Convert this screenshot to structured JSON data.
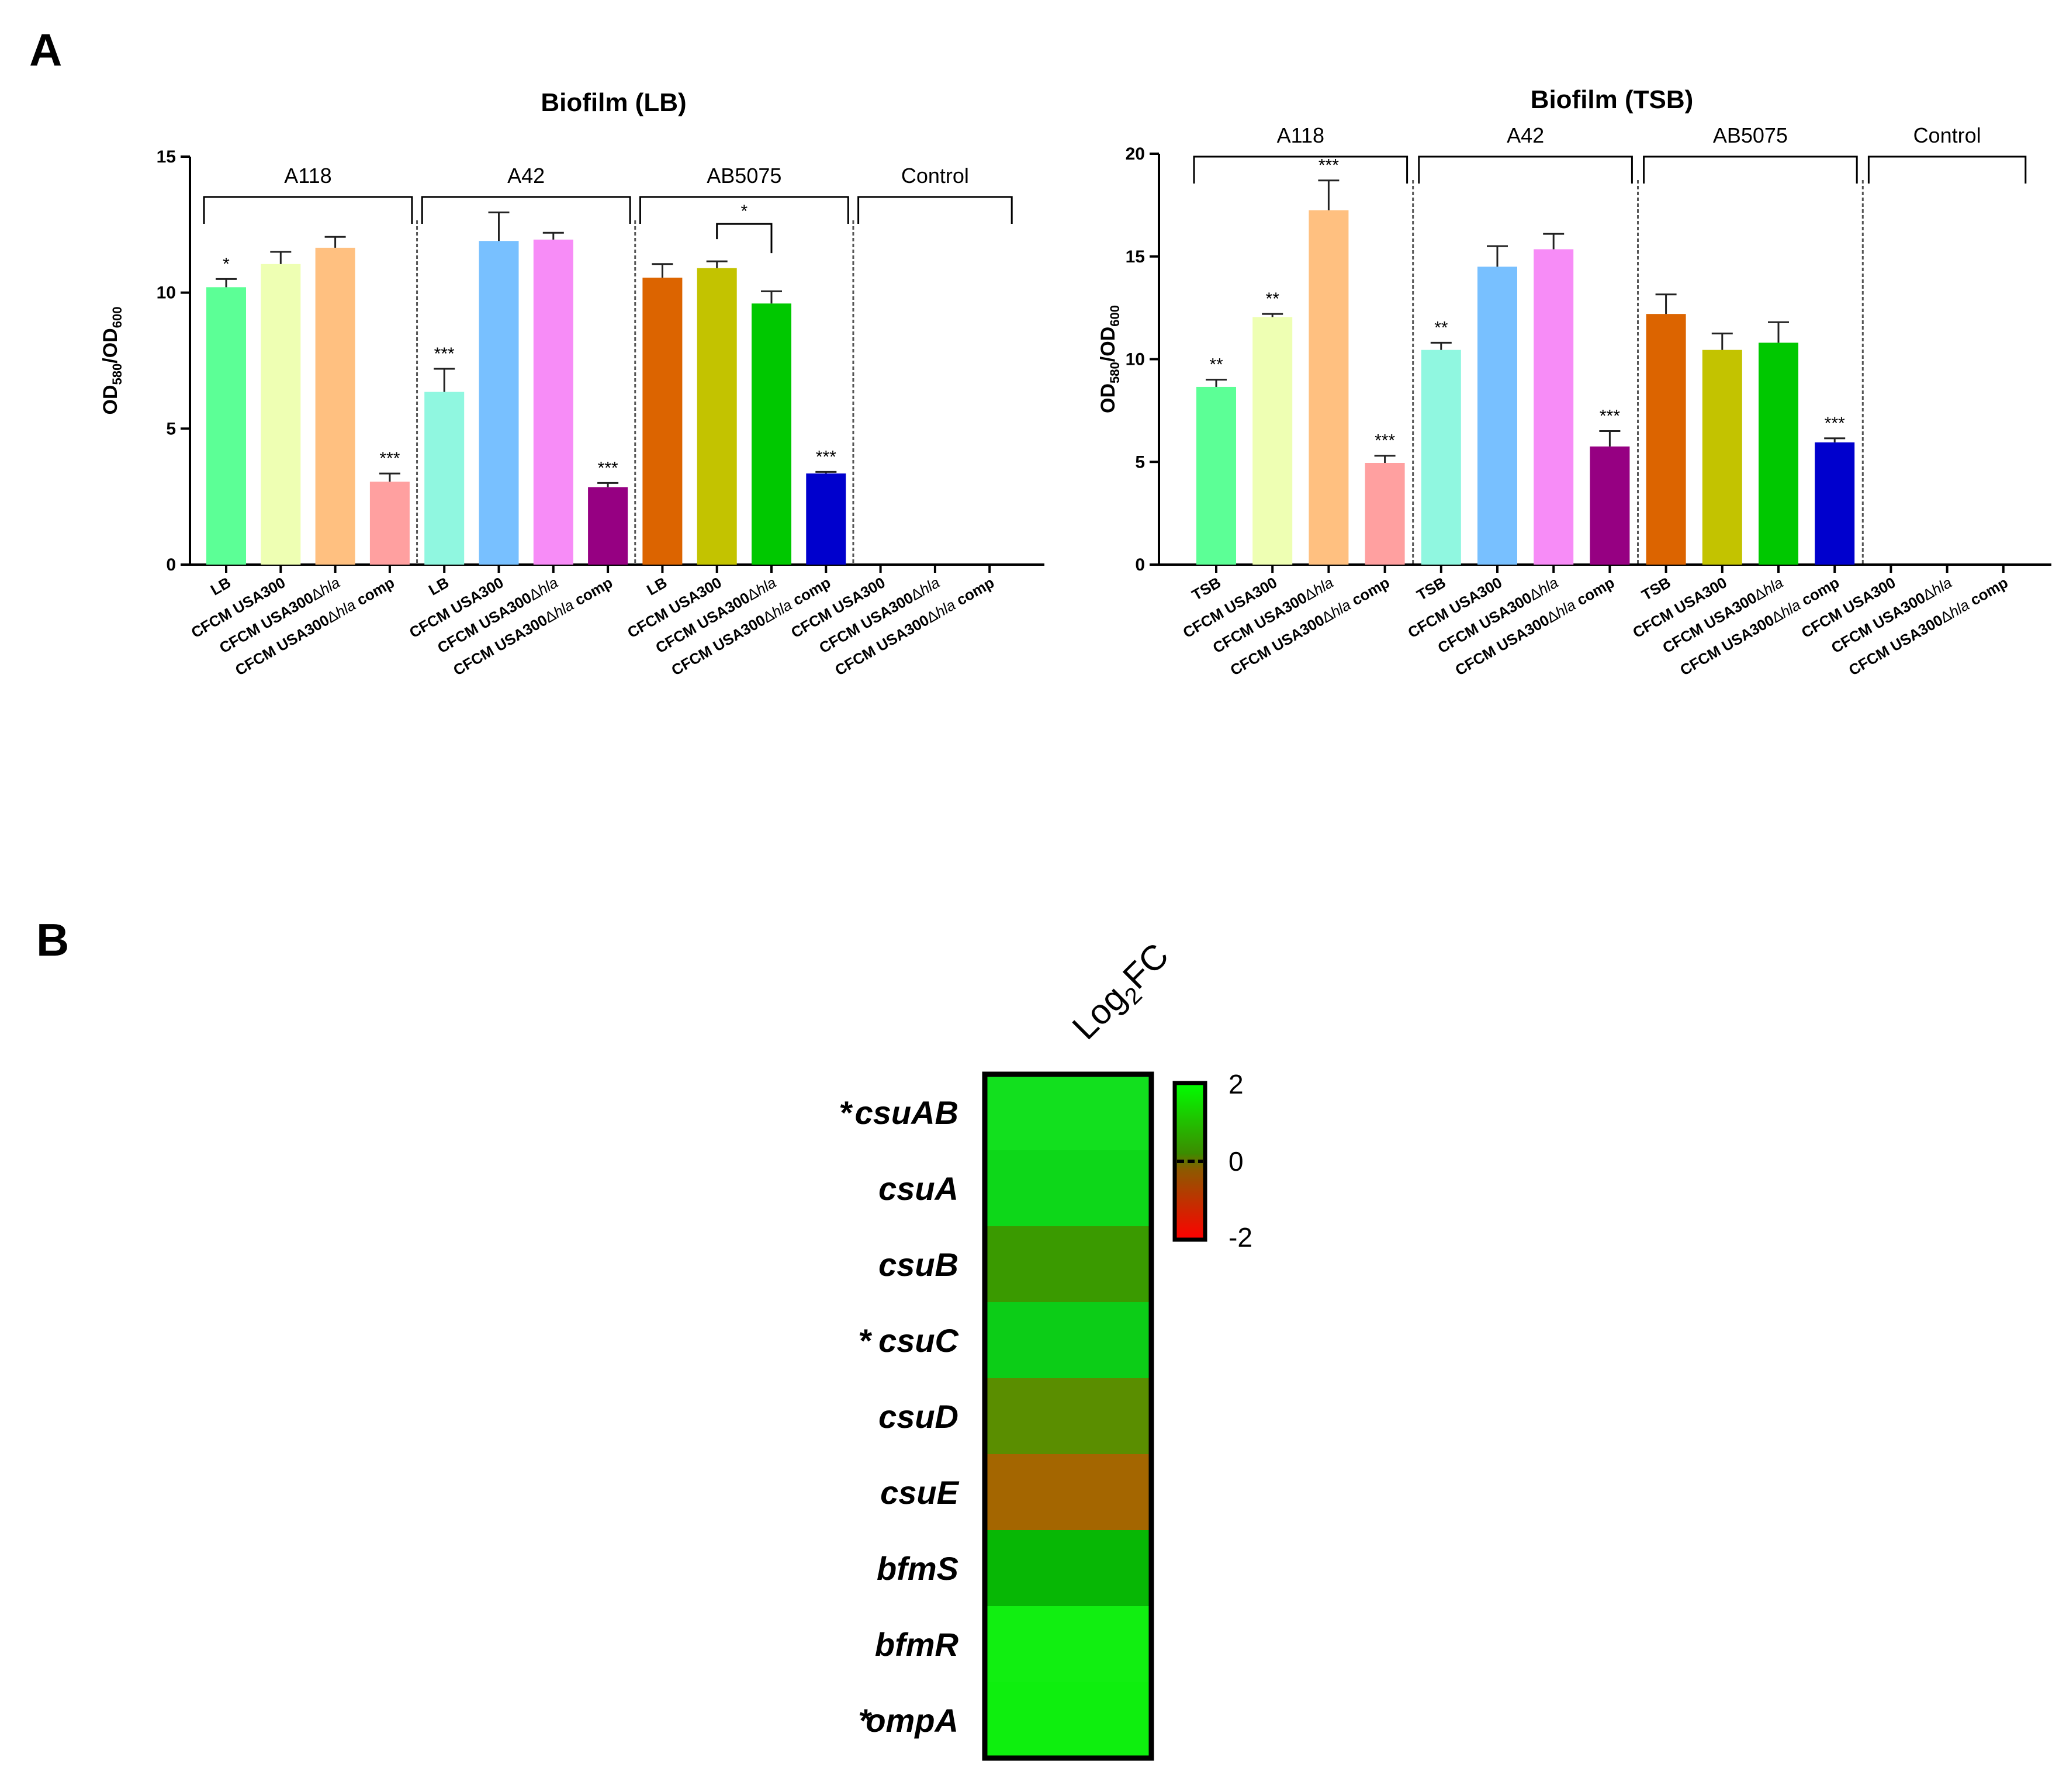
{
  "panel_labels": {
    "a": "A",
    "b": "B"
  },
  "chart_data": [
    {
      "type": "bar",
      "title": "Biofilm (LB)",
      "ylabel": "OD580/OD600",
      "ylabel_parts": {
        "main1": "OD",
        "sub1": "580",
        "slash": "/OD",
        "sub2": "600"
      },
      "ylim": [
        0,
        15
      ],
      "yticks": [
        0,
        5,
        10,
        15
      ],
      "groups": [
        {
          "label": "A118",
          "bars": [
            {
              "label": "LB",
              "value": 10.2,
              "err": 0.3,
              "color": "#5cff96",
              "sig": "*"
            },
            {
              "label": "CFCM USA300",
              "value": 11.05,
              "err": 0.45,
              "color": "#eeffb3",
              "sig": ""
            },
            {
              "label": "CFCM USA300Δhla",
              "value": 11.65,
              "err": 0.4,
              "color": "#ffc080",
              "sig": ""
            },
            {
              "label": "CFCM USA300Δhla comp",
              "value": 3.05,
              "err": 0.3,
              "color": "#ffa0a0",
              "sig": "***"
            }
          ]
        },
        {
          "label": "A42",
          "bars": [
            {
              "label": "LB",
              "value": 6.35,
              "err": 0.85,
              "color": "#90f7e0",
              "sig": "***"
            },
            {
              "label": "CFCM USA300",
              "value": 11.9,
              "err": 1.05,
              "color": "#78c0ff",
              "sig": ""
            },
            {
              "label": "CFCM USA300Δhla",
              "value": 11.95,
              "err": 0.25,
              "color": "#f78cf7",
              "sig": ""
            },
            {
              "label": "CFCM USA300Δhla comp",
              "value": 2.85,
              "err": 0.15,
              "color": "#960082",
              "sig": "***"
            }
          ]
        },
        {
          "label": "AB5075",
          "bars": [
            {
              "label": "LB",
              "value": 10.55,
              "err": 0.5,
              "color": "#dc6400",
              "sig": ""
            },
            {
              "label": "CFCM USA300",
              "value": 10.9,
              "err": 0.25,
              "color": "#c3c300",
              "sig": ""
            },
            {
              "label": "CFCM USA300Δhla",
              "value": 9.6,
              "err": 0.45,
              "color": "#00c800",
              "sig": ""
            },
            {
              "label": "CFCM USA300Δhla comp",
              "value": 3.35,
              "err": 0.06,
              "color": "#0000cd",
              "sig": "***"
            }
          ]
        },
        {
          "label": "Control",
          "bars": [
            {
              "label": "CFCM USA300",
              "value": 0,
              "err": 0,
              "color": "#000000",
              "sig": ""
            },
            {
              "label": "CFCM USA300Δhla",
              "value": 0,
              "err": 0,
              "color": "#000000",
              "sig": ""
            },
            {
              "label": "CFCM USA300Δhla comp",
              "value": 0,
              "err": 0,
              "color": "#000000",
              "sig": ""
            }
          ]
        }
      ],
      "comparison": {
        "group": 2,
        "from": 1,
        "to": 2,
        "label": "*"
      }
    },
    {
      "type": "bar",
      "title": "Biofilm (TSB)",
      "ylabel": "OD580/OD600",
      "ylabel_parts": {
        "main1": "OD",
        "sub1": "580",
        "slash": "/OD",
        "sub2": "600"
      },
      "ylim": [
        0,
        20
      ],
      "yticks": [
        0,
        5,
        10,
        15,
        20
      ],
      "groups": [
        {
          "label": "A118",
          "bars": [
            {
              "label": "TSB",
              "value": 8.65,
              "err": 0.35,
              "color": "#5cff96",
              "sig": "**"
            },
            {
              "label": "CFCM USA300",
              "value": 12.05,
              "err": 0.15,
              "color": "#eeffb3",
              "sig": "**"
            },
            {
              "label": "CFCM USA300Δhla",
              "value": 17.25,
              "err": 1.45,
              "color": "#ffc080",
              "sig": "***"
            },
            {
              "label": "CFCM USA300Δhla comp",
              "value": 4.95,
              "err": 0.35,
              "color": "#ffa0a0",
              "sig": "***"
            }
          ]
        },
        {
          "label": "A42",
          "bars": [
            {
              "label": "TSB",
              "value": 10.45,
              "err": 0.35,
              "color": "#90f7e0",
              "sig": "**"
            },
            {
              "label": "CFCM USA300",
              "value": 14.5,
              "err": 1.0,
              "color": "#78c0ff",
              "sig": ""
            },
            {
              "label": "CFCM USA300Δhla",
              "value": 15.35,
              "err": 0.75,
              "color": "#f78cf7",
              "sig": ""
            },
            {
              "label": "CFCM USA300Δhla comp",
              "value": 5.75,
              "err": 0.75,
              "color": "#960082",
              "sig": "***"
            }
          ]
        },
        {
          "label": "AB5075",
          "bars": [
            {
              "label": "TSB",
              "value": 12.2,
              "err": 0.95,
              "color": "#dc6400",
              "sig": ""
            },
            {
              "label": "CFCM USA300",
              "value": 10.45,
              "err": 0.8,
              "color": "#c3c300",
              "sig": ""
            },
            {
              "label": "CFCM USA300Δhla",
              "value": 10.8,
              "err": 1.0,
              "color": "#00c800",
              "sig": ""
            },
            {
              "label": "CFCM USA300Δhla comp",
              "value": 5.95,
              "err": 0.2,
              "color": "#0000cd",
              "sig": "***"
            }
          ]
        },
        {
          "label": "Control",
          "bars": [
            {
              "label": "CFCM USA300",
              "value": 0,
              "err": 0,
              "color": "#000000",
              "sig": ""
            },
            {
              "label": "CFCM USA300Δhla",
              "value": 0,
              "err": 0,
              "color": "#000000",
              "sig": ""
            },
            {
              "label": "CFCM USA300Δhla comp",
              "value": 0,
              "err": 0,
              "color": "#000000",
              "sig": ""
            }
          ]
        }
      ]
    },
    {
      "type": "heatmap",
      "title": "Log2FC",
      "title_parts": {
        "main": "Log",
        "sub": "2",
        "tail": "FC"
      },
      "rows": [
        {
          "gene": "csuAB",
          "value": 1.7,
          "star": "*",
          "color": "#12e01e"
        },
        {
          "gene": "csuA",
          "value": 1.6,
          "star": "",
          "color": "#0dd719"
        },
        {
          "gene": "csuB",
          "value": 0.9,
          "star": "",
          "color": "#3a9a00"
        },
        {
          "gene": "csuC",
          "value": 1.5,
          "star": "*",
          "color": "#0ccd17"
        },
        {
          "gene": "csuD",
          "value": 0.6,
          "star": "",
          "color": "#5a8e00"
        },
        {
          "gene": "csuE",
          "value": -0.4,
          "star": "",
          "color": "#a46600"
        },
        {
          "gene": "bfmS",
          "value": 1.4,
          "star": "",
          "color": "#07b705"
        },
        {
          "gene": "bfmR",
          "value": 1.95,
          "star": "",
          "color": "#11ef11"
        },
        {
          "gene": "ompA",
          "value": 2.0,
          "star": "*",
          "color": "#0eef0e"
        }
      ],
      "colorbar": {
        "ticks": [
          "2",
          "0",
          "-2"
        ],
        "range": [
          -2,
          2
        ]
      }
    }
  ]
}
